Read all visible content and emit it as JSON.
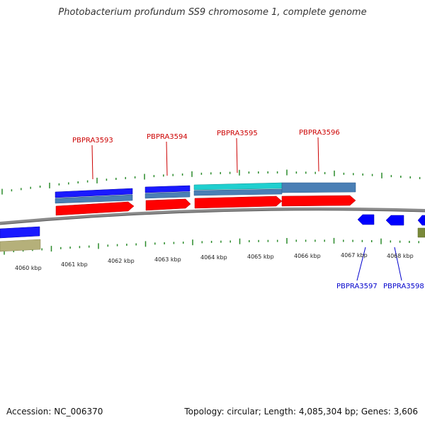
{
  "title": "Photobacterium profundum SS9 chromosome 1, complete genome",
  "footer": {
    "accession": "Accession: NC_006370",
    "summary": "Topology: circular; Length: 4,085,304 bp; Genes: 3,606"
  },
  "colors": {
    "forward_gene": "#ff0000",
    "forward_label": "#cc0000",
    "reverse_gene": "#0000ff",
    "reverse_label": "#0000cc",
    "cds_blue": "#1a1aff",
    "cds_steel": "#4a7fb5",
    "cds_cyan": "#1fcfcf",
    "olive": "#b5b07a",
    "backbone": "#8a8a8a",
    "tick_green": "#2a8a2a"
  },
  "kbp_labels": [
    "4060 kbp",
    "4061 kbp",
    "4062 kbp",
    "4063 kbp",
    "4064 kbp",
    "4065 kbp",
    "4066 kbp",
    "4067 kbp",
    "4068 kbp"
  ],
  "forward_genes": [
    {
      "label": "PBPRA3593"
    },
    {
      "label": "PBPRA3594"
    },
    {
      "label": "PBPRA3595"
    },
    {
      "label": "PBPRA3596"
    }
  ],
  "reverse_genes": [
    {
      "label": "PBPRA3597"
    },
    {
      "label": "PBPRA3598"
    }
  ]
}
